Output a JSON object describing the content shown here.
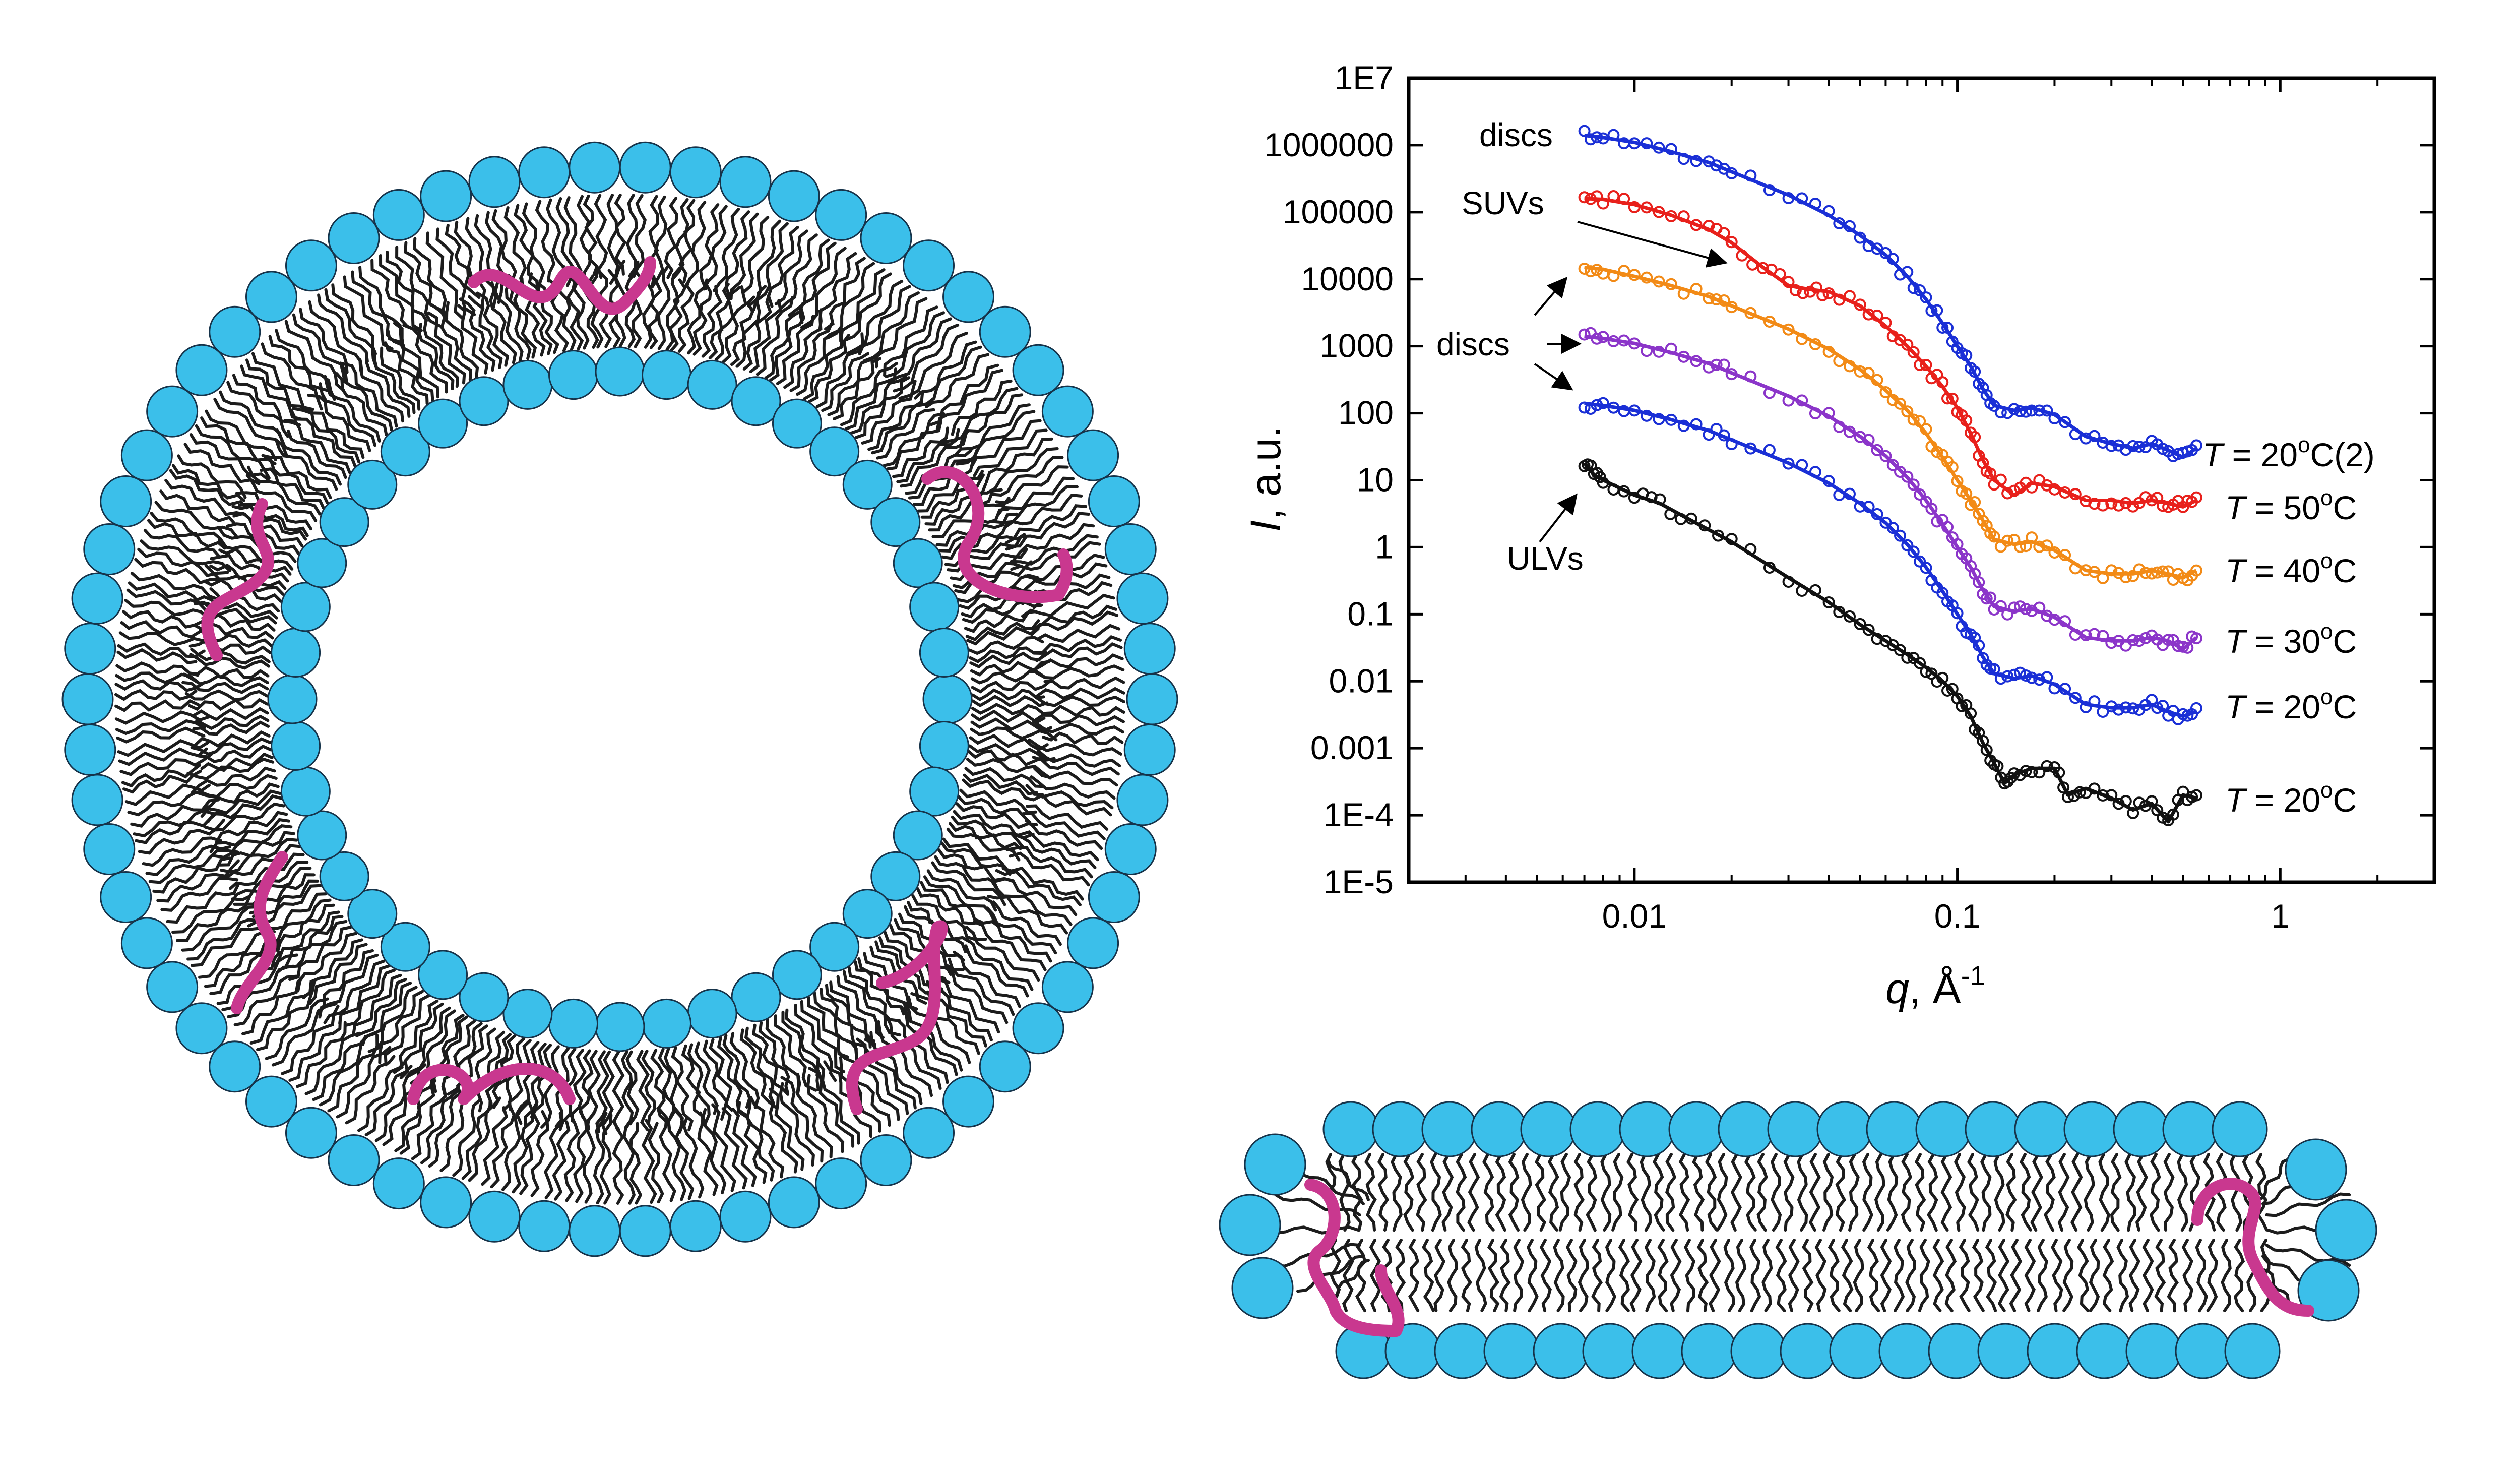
{
  "colors": {
    "headgroup": "#3bbfea",
    "headgroup_outline": "#16334a",
    "tail": "#1c1c1c",
    "polymer": "#c9388f",
    "plot_frame": "#000000"
  },
  "icons": {
    "vesicle": "vesicle-cross-section-icon",
    "disc": "bicelle-disc-icon"
  },
  "chart_data": {
    "type": "scatter",
    "xlabel_main": "q",
    "xlabel_unit": ", Å",
    "xlabel_sup": "-1",
    "ylabel_main": "I",
    "ylabel_unit": ", a.u.",
    "xscale": "log",
    "yscale": "log",
    "xlim": [
      0.002,
      3
    ],
    "ylim": [
      1e-05,
      10000000.0
    ],
    "xticks": [
      {
        "value": 0.01,
        "label": "0.01"
      },
      {
        "value": 0.1,
        "label": "0.1"
      },
      {
        "value": 1,
        "label": "1"
      }
    ],
    "yticks": [
      {
        "value": 10000000.0,
        "label": "1E7"
      },
      {
        "value": 1000000.0,
        "label": "1000000"
      },
      {
        "value": 100000.0,
        "label": "100000"
      },
      {
        "value": 10000.0,
        "label": "10000"
      },
      {
        "value": 1000.0,
        "label": "1000"
      },
      {
        "value": 100.0,
        "label": "100"
      },
      {
        "value": 10,
        "label": "10"
      },
      {
        "value": 1,
        "label": "1"
      },
      {
        "value": 0.1,
        "label": "0.1"
      },
      {
        "value": 0.01,
        "label": "0.01"
      },
      {
        "value": 0.001,
        "label": "0.001"
      },
      {
        "value": 0.0001,
        "label": "1E-4"
      },
      {
        "value": 1e-05,
        "label": "1E-5"
      }
    ],
    "legend": "none",
    "series": [
      {
        "label_prefix": "T",
        "label_temp": " = 20",
        "label_sup": "o",
        "label_suffix": "C(2)",
        "color": "#1a2fd6",
        "points": [
          [
            0.007,
            1400000.0
          ],
          [
            0.008,
            1300000.0
          ],
          [
            0.01,
            1100000.0
          ],
          [
            0.013,
            800000.0
          ],
          [
            0.017,
            550000.0
          ],
          [
            0.02,
            400000.0
          ],
          [
            0.03,
            180000.0
          ],
          [
            0.04,
            90000.0
          ],
          [
            0.05,
            45000.0
          ],
          [
            0.06,
            23000.0
          ],
          [
            0.07,
            11000.0
          ],
          [
            0.08,
            5000.0
          ],
          [
            0.09,
            2200.0
          ],
          [
            0.1,
            1000
          ],
          [
            0.11,
            500
          ],
          [
            0.12,
            230
          ],
          [
            0.13,
            130
          ],
          [
            0.15,
            110
          ],
          [
            0.17,
            120
          ],
          [
            0.2,
            95
          ],
          [
            0.25,
            45
          ],
          [
            0.3,
            35
          ],
          [
            0.35,
            30
          ],
          [
            0.4,
            35
          ],
          [
            0.45,
            28
          ],
          [
            0.5,
            22
          ],
          [
            0.55,
            30
          ]
        ]
      },
      {
        "label_prefix": "T",
        "label_temp": " = 50",
        "label_sup": "o",
        "label_suffix": "C",
        "color": "#e8201b",
        "points": [
          [
            0.007,
            160000.0
          ],
          [
            0.008,
            155000.0
          ],
          [
            0.01,
            130000.0
          ],
          [
            0.013,
            90000.0
          ],
          [
            0.017,
            55000.0
          ],
          [
            0.02,
            35000.0
          ],
          [
            0.025,
            15000.0
          ],
          [
            0.03,
            8000.0
          ],
          [
            0.035,
            7000.0
          ],
          [
            0.04,
            6500.0
          ],
          [
            0.05,
            4000.0
          ],
          [
            0.06,
            2000.0
          ],
          [
            0.07,
            1000.0
          ],
          [
            0.08,
            500
          ],
          [
            0.09,
            250
          ],
          [
            0.1,
            120
          ],
          [
            0.11,
            50
          ],
          [
            0.12,
            20
          ],
          [
            0.13,
            10
          ],
          [
            0.15,
            6
          ],
          [
            0.17,
            9
          ],
          [
            0.2,
            8
          ],
          [
            0.25,
            5
          ],
          [
            0.3,
            5
          ],
          [
            0.35,
            4.5
          ],
          [
            0.4,
            5
          ],
          [
            0.45,
            4.5
          ],
          [
            0.5,
            4
          ],
          [
            0.55,
            5
          ]
        ]
      },
      {
        "label_prefix": "T",
        "label_temp": " = 40",
        "label_sup": "o",
        "label_suffix": "C",
        "color": "#f28a16",
        "points": [
          [
            0.007,
            15000.0
          ],
          [
            0.008,
            14000.0
          ],
          [
            0.01,
            11000.0
          ],
          [
            0.013,
            8000.0
          ],
          [
            0.017,
            5500.0
          ],
          [
            0.02,
            4000.0
          ],
          [
            0.03,
            1800.0
          ],
          [
            0.04,
            900
          ],
          [
            0.05,
            450
          ],
          [
            0.06,
            220
          ],
          [
            0.07,
            110
          ],
          [
            0.08,
            50
          ],
          [
            0.09,
            22
          ],
          [
            0.1,
            10
          ],
          [
            0.11,
            5
          ],
          [
            0.12,
            2.5
          ],
          [
            0.13,
            1.3
          ],
          [
            0.15,
            1.1
          ],
          [
            0.17,
            1.2
          ],
          [
            0.2,
            0.9
          ],
          [
            0.25,
            0.45
          ],
          [
            0.3,
            0.4
          ],
          [
            0.35,
            0.4
          ],
          [
            0.4,
            0.45
          ],
          [
            0.45,
            0.4
          ],
          [
            0.5,
            0.35
          ],
          [
            0.55,
            0.45
          ]
        ]
      },
      {
        "label_prefix": "T",
        "label_temp": " = 30",
        "label_sup": "o",
        "label_suffix": "C",
        "color": "#8b35c9",
        "points": [
          [
            0.007,
            1400
          ],
          [
            0.008,
            1300
          ],
          [
            0.01,
            1100
          ],
          [
            0.013,
            800
          ],
          [
            0.017,
            550
          ],
          [
            0.02,
            400
          ],
          [
            0.03,
            180
          ],
          [
            0.04,
            90
          ],
          [
            0.05,
            45
          ],
          [
            0.06,
            23
          ],
          [
            0.07,
            11
          ],
          [
            0.08,
            5
          ],
          [
            0.09,
            2.2
          ],
          [
            0.1,
            1
          ],
          [
            0.11,
            0.5
          ],
          [
            0.12,
            0.23
          ],
          [
            0.13,
            0.13
          ],
          [
            0.15,
            0.11
          ],
          [
            0.17,
            0.12
          ],
          [
            0.2,
            0.09
          ],
          [
            0.25,
            0.045
          ],
          [
            0.3,
            0.04
          ],
          [
            0.35,
            0.04
          ],
          [
            0.4,
            0.045
          ],
          [
            0.45,
            0.04
          ],
          [
            0.5,
            0.03
          ],
          [
            0.55,
            0.045
          ]
        ]
      },
      {
        "label_prefix": "T",
        "label_temp": " = 20",
        "label_sup": "o",
        "label_suffix": "C",
        "color": "#1a2fd6",
        "points": [
          [
            0.007,
            140
          ],
          [
            0.008,
            130
          ],
          [
            0.01,
            110
          ],
          [
            0.013,
            80
          ],
          [
            0.017,
            55
          ],
          [
            0.02,
            40
          ],
          [
            0.03,
            18
          ],
          [
            0.04,
            9
          ],
          [
            0.05,
            4.5
          ],
          [
            0.06,
            2.3
          ],
          [
            0.07,
            1.1
          ],
          [
            0.08,
            0.5
          ],
          [
            0.09,
            0.22
          ],
          [
            0.1,
            0.1
          ],
          [
            0.11,
            0.05
          ],
          [
            0.12,
            0.023
          ],
          [
            0.13,
            0.013
          ],
          [
            0.15,
            0.011
          ],
          [
            0.17,
            0.012
          ],
          [
            0.2,
            0.009
          ],
          [
            0.25,
            0.0045
          ],
          [
            0.3,
            0.004
          ],
          [
            0.35,
            0.004
          ],
          [
            0.4,
            0.0045
          ],
          [
            0.45,
            0.0035
          ],
          [
            0.5,
            0.003
          ],
          [
            0.55,
            0.0035
          ]
        ]
      },
      {
        "label_prefix": "T",
        "label_temp": " = 20",
        "label_sup": "o",
        "label_suffix": "C",
        "color": "#111111",
        "points": [
          [
            0.007,
            18
          ],
          [
            0.0075,
            12
          ],
          [
            0.008,
            10
          ],
          [
            0.01,
            6
          ],
          [
            0.012,
            4.5
          ],
          [
            0.015,
            2.5
          ],
          [
            0.02,
            1.2
          ],
          [
            0.03,
            0.35
          ],
          [
            0.04,
            0.15
          ],
          [
            0.05,
            0.07
          ],
          [
            0.06,
            0.04
          ],
          [
            0.07,
            0.025
          ],
          [
            0.08,
            0.016
          ],
          [
            0.09,
            0.01
          ],
          [
            0.1,
            0.006
          ],
          [
            0.11,
            0.003
          ],
          [
            0.12,
            0.0012
          ],
          [
            0.13,
            0.0006
          ],
          [
            0.14,
            0.0003
          ],
          [
            0.15,
            0.0004
          ],
          [
            0.17,
            0.0005
          ],
          [
            0.2,
            0.0005
          ],
          [
            0.22,
            0.0002
          ],
          [
            0.25,
            0.00025
          ],
          [
            0.3,
            0.00018
          ],
          [
            0.35,
            0.00012
          ],
          [
            0.4,
            0.00015
          ],
          [
            0.45,
            8e-05
          ],
          [
            0.5,
            0.0002
          ],
          [
            0.55,
            0.00018
          ]
        ]
      }
    ],
    "annotations": [
      {
        "text": "discs"
      },
      {
        "text": "SUVs"
      },
      {
        "text": "discs"
      },
      {
        "text": "ULVs"
      }
    ]
  }
}
